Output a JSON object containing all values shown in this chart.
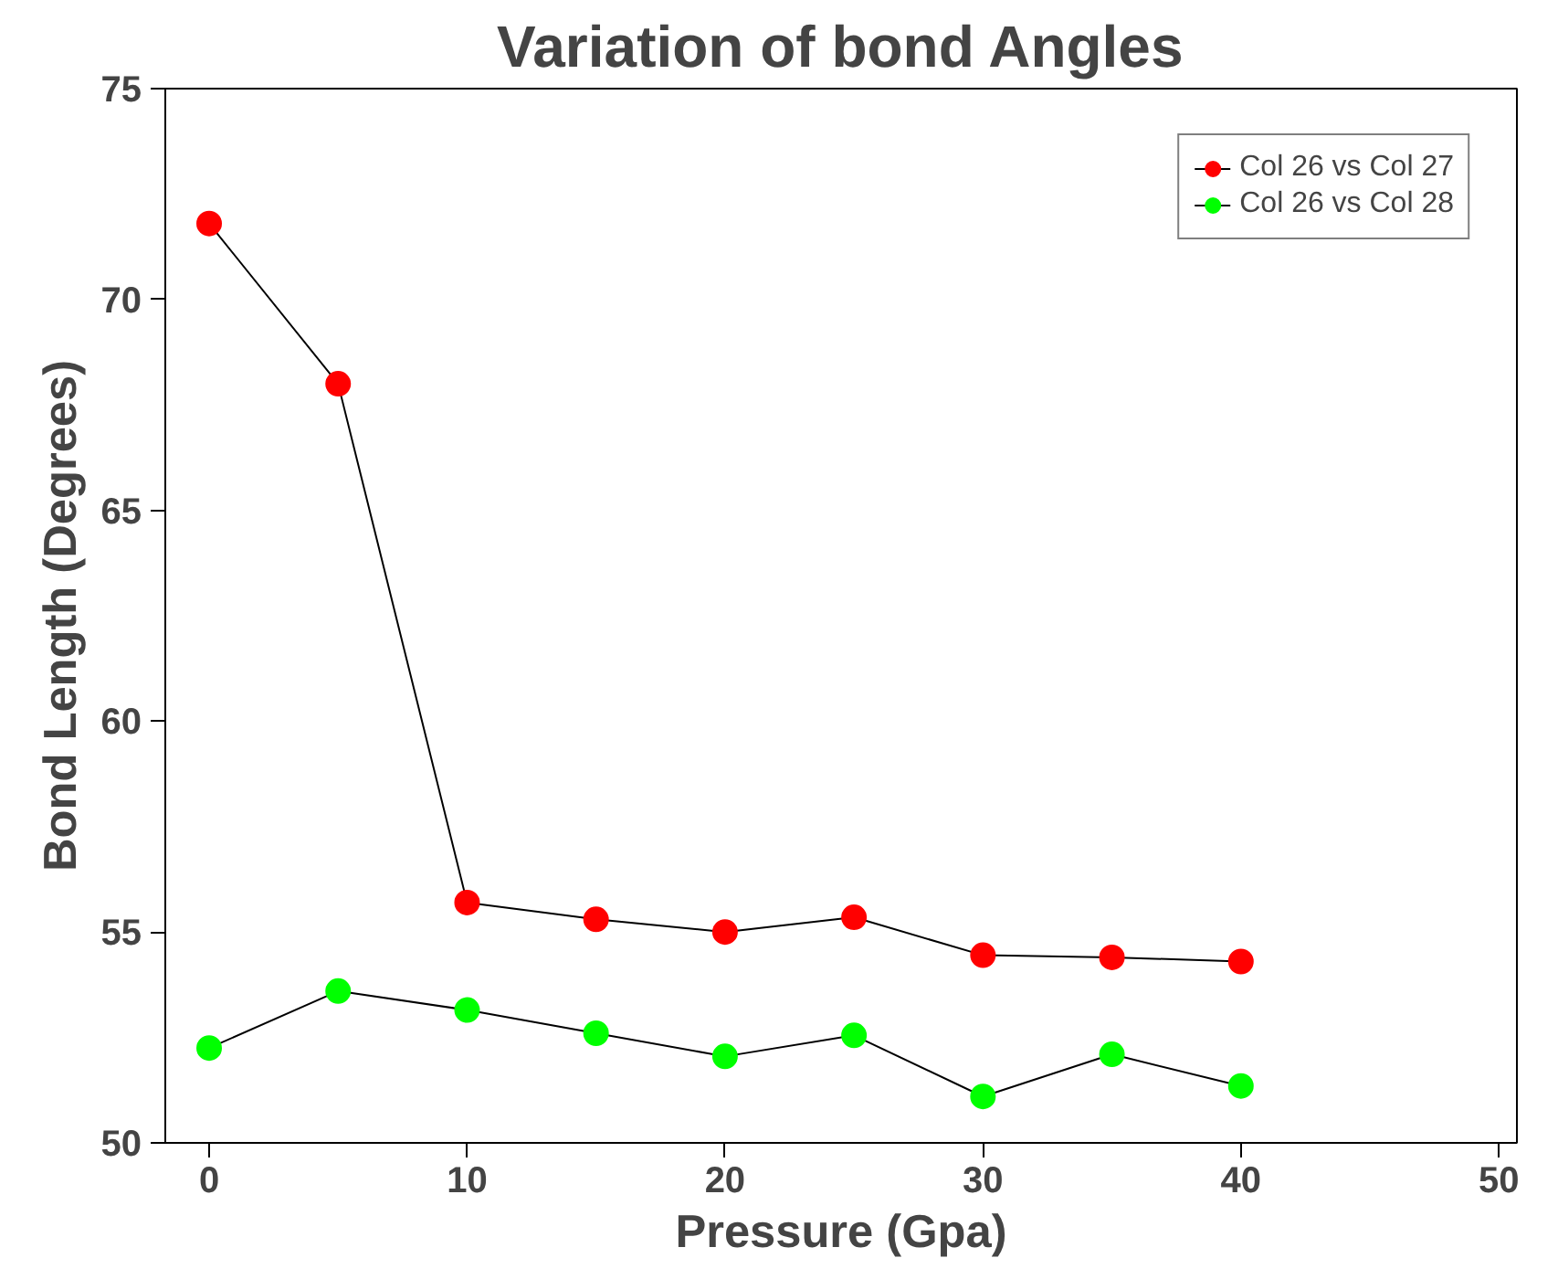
{
  "chart_data": {
    "type": "line",
    "title": "Variation of bond Angles",
    "xlabel": "Pressure (Gpa)",
    "ylabel": "Bond Length (Degrees)",
    "x": [
      0,
      5,
      10,
      15,
      20,
      25,
      30,
      35,
      40
    ],
    "series": [
      {
        "name": "Col 26 vs Col 27",
        "color": "#ff0000",
        "values": [
          71.8,
          68.0,
          55.7,
          55.3,
          55.0,
          55.35,
          54.45,
          54.4,
          54.3
        ]
      },
      {
        "name": "Col 26 vs Col 28",
        "color": "#00ff00",
        "values": [
          52.25,
          53.6,
          53.15,
          52.6,
          52.05,
          52.55,
          51.1,
          52.1,
          51.35
        ]
      }
    ],
    "xlim": [
      -1.7,
      50.7
    ],
    "ylim": [
      50,
      75
    ],
    "xticks": [
      0,
      10,
      20,
      30,
      40,
      50
    ],
    "yticks": [
      50,
      55,
      60,
      65,
      70,
      75
    ],
    "grid": false,
    "legend": "top right",
    "marker": "circle",
    "line_style": "solid"
  }
}
